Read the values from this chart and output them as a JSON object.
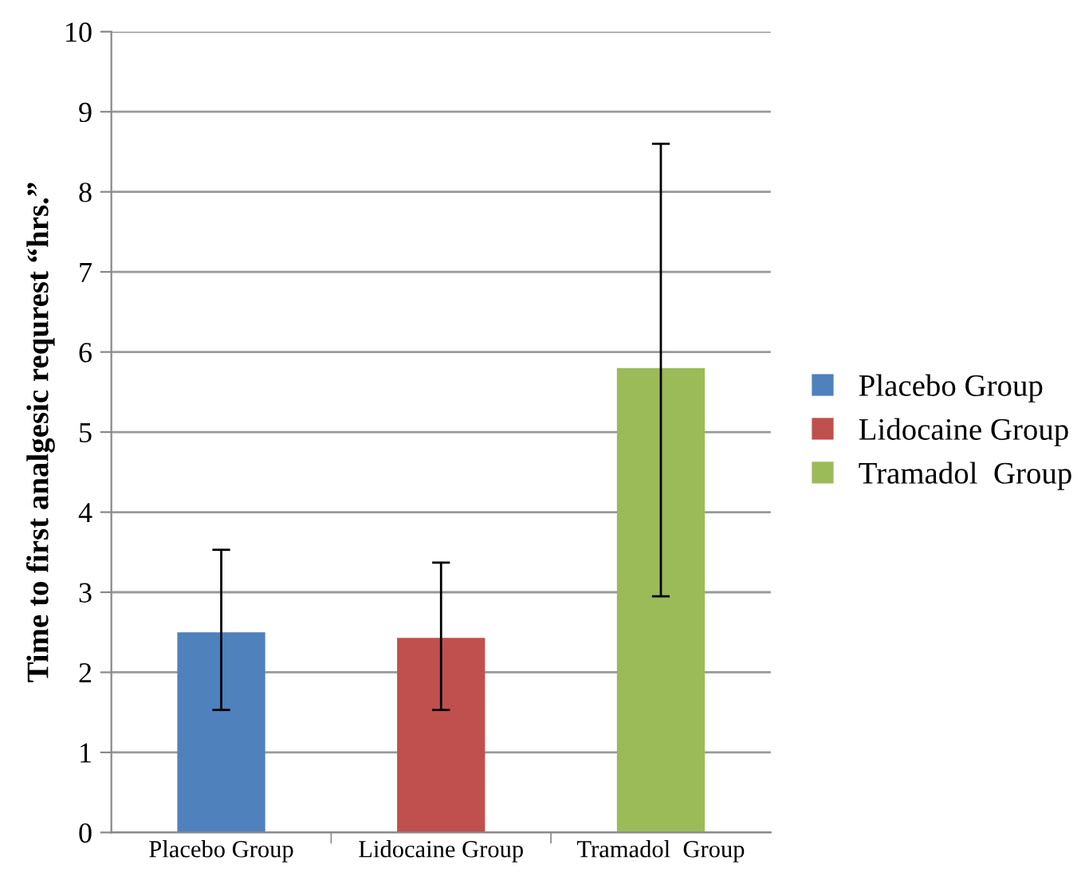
{
  "chart_data": {
    "type": "bar",
    "ylabel": "Time to first analgesic requrest “hrs.”",
    "categories": [
      "Placebo Group",
      "Lidocaine Group",
      "Tramadol  Group"
    ],
    "series": [
      {
        "name": "Placebo Group",
        "color": "#4f81bd",
        "values": [
          2.5,
          null,
          null
        ],
        "errors": [
          [
            1.53,
            3.53
          ],
          null,
          null
        ]
      },
      {
        "name": "Lidocaine Group",
        "color": "#c0504d",
        "values": [
          null,
          2.43,
          null
        ],
        "errors": [
          null,
          [
            1.53,
            3.37
          ],
          null
        ]
      },
      {
        "name": "Tramadol  Group",
        "color": "#9bbb59",
        "values": [
          null,
          null,
          5.8
        ],
        "errors": [
          null,
          null,
          [
            2.95,
            8.6
          ]
        ]
      }
    ],
    "ylim": [
      0,
      10
    ],
    "yticks": [
      0,
      1,
      2,
      3,
      4,
      5,
      6,
      7,
      8,
      9,
      10
    ],
    "grid": "y",
    "legend": "right"
  }
}
